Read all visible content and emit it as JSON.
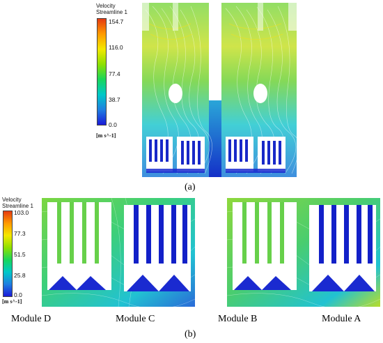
{
  "panel_a": {
    "label": "(a)",
    "legend": {
      "title_line1": "Velocity",
      "title_line2": "Streamline 1",
      "ticks": [
        "154.7",
        "116.0",
        "77.4",
        "38.7",
        "0.0"
      ],
      "unit": "[m s^-1]",
      "colors": [
        "#e43a12",
        "#ff9a00",
        "#f4e800",
        "#8ee000",
        "#19d65a",
        "#00c8c8",
        "#1f7fe0",
        "#1a1ad8"
      ]
    }
  },
  "panel_b": {
    "label": "(b)",
    "legend": {
      "title_line1": "Velocity",
      "title_line2": "Streamline 1",
      "ticks": [
        "103.0",
        "77.3",
        "51.5",
        "25.8",
        "0.0"
      ],
      "unit": "[m s^-1]",
      "colors": [
        "#e43a12",
        "#ff9a00",
        "#f4e800",
        "#8ee000",
        "#19d65a",
        "#00c8c8",
        "#1f7fe0",
        "#1a1ad8"
      ]
    },
    "modules": [
      "Module D",
      "Module C",
      "Module B",
      "Module A"
    ]
  },
  "palette": {
    "streamline_green": "#6fd23a",
    "streamline_cyan": "#21c7cf",
    "streamline_blue": "#2a55d8",
    "streamline_yellow": "#d9e21a",
    "heater_blue": "#1220c8"
  }
}
